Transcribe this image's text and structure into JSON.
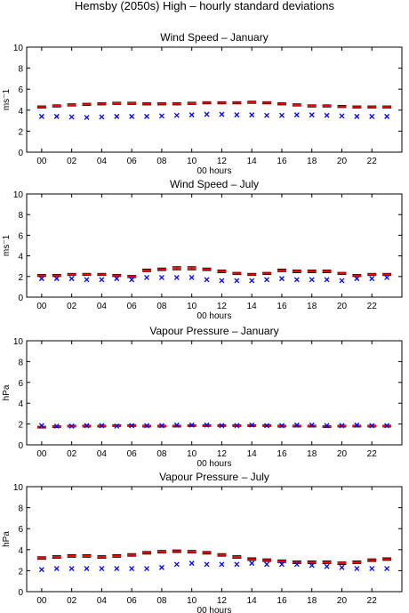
{
  "figure": {
    "title": "Hemsby (2050s) High – hourly standard deviations"
  },
  "chart_data": [
    {
      "type": "scatter",
      "title": "Wind Speed – January",
      "xlabel": "00 hours",
      "ylabel": "ms⁻1",
      "xlim": [
        -1,
        24
      ],
      "ylim": [
        0,
        10
      ],
      "x_ticks": [
        "00",
        "02",
        "04",
        "06",
        "08",
        "10",
        "12",
        "14",
        "16",
        "18",
        "20",
        "22"
      ],
      "y_ticks": [
        0,
        2,
        4,
        6,
        8,
        10
      ],
      "x": [
        0,
        1,
        2,
        3,
        4,
        5,
        6,
        7,
        8,
        9,
        10,
        11,
        12,
        13,
        14,
        15,
        16,
        17,
        18,
        19,
        20,
        21,
        22,
        23
      ],
      "series": [
        {
          "marker": "errorbar",
          "color": "#ff0000",
          "values": [
            4.3,
            4.4,
            4.5,
            4.55,
            4.6,
            4.65,
            4.65,
            4.6,
            4.6,
            4.6,
            4.65,
            4.7,
            4.7,
            4.7,
            4.75,
            4.7,
            4.6,
            4.5,
            4.4,
            4.4,
            4.35,
            4.3,
            4.3,
            4.3
          ],
          "err": [
            0.1,
            0.1,
            0.1,
            0.1,
            0.1,
            0.1,
            0.1,
            0.1,
            0.1,
            0.1,
            0.1,
            0.1,
            0.1,
            0.1,
            0.1,
            0.1,
            0.1,
            0.1,
            0.1,
            0.1,
            0.1,
            0.1,
            0.1,
            0.1
          ]
        },
        {
          "marker": "x",
          "color": "#0000ff",
          "values": [
            3.4,
            3.4,
            3.35,
            3.3,
            3.35,
            3.4,
            3.4,
            3.4,
            3.45,
            3.5,
            3.55,
            3.6,
            3.6,
            3.55,
            3.55,
            3.5,
            3.5,
            3.55,
            3.55,
            3.5,
            3.45,
            3.4,
            3.4,
            3.4
          ]
        }
      ]
    },
    {
      "type": "scatter",
      "title": "Wind Speed – July",
      "xlabel": "00 hours",
      "ylabel": "ms⁻1",
      "xlim": [
        -1,
        24
      ],
      "ylim": [
        0,
        10
      ],
      "x_ticks": [
        "00",
        "02",
        "04",
        "06",
        "08",
        "10",
        "12",
        "14",
        "16",
        "18",
        "20",
        "22"
      ],
      "y_ticks": [
        0,
        2,
        4,
        6,
        8,
        10
      ],
      "x": [
        0,
        1,
        2,
        3,
        4,
        5,
        6,
        7,
        8,
        9,
        10,
        11,
        12,
        13,
        14,
        15,
        16,
        17,
        18,
        19,
        20,
        21,
        22,
        23
      ],
      "series": [
        {
          "marker": "errorbar",
          "color": "#ff0000",
          "values": [
            2.1,
            2.1,
            2.2,
            2.2,
            2.2,
            2.1,
            2.0,
            2.6,
            2.7,
            2.8,
            2.8,
            2.7,
            2.5,
            2.3,
            2.2,
            2.3,
            2.6,
            2.5,
            2.5,
            2.5,
            2.3,
            2.1,
            2.2,
            2.2
          ],
          "err": [
            0.1,
            0.1,
            0.1,
            0.1,
            0.1,
            0.1,
            0.1,
            0.12,
            0.12,
            0.15,
            0.15,
            0.12,
            0.12,
            0.1,
            0.1,
            0.1,
            0.12,
            0.12,
            0.12,
            0.12,
            0.1,
            0.1,
            0.1,
            0.1
          ]
        },
        {
          "marker": "x",
          "color": "#0000ff",
          "values": [
            1.8,
            1.8,
            1.8,
            1.7,
            1.7,
            1.8,
            1.7,
            1.9,
            1.9,
            1.9,
            1.9,
            1.7,
            1.6,
            1.6,
            1.6,
            1.7,
            1.8,
            1.7,
            1.7,
            1.7,
            1.6,
            1.8,
            1.8,
            1.9
          ]
        }
      ]
    },
    {
      "type": "scatter",
      "title": "Vapour Pressure – January",
      "xlabel": "00 hours",
      "ylabel": "hPa",
      "xlim": [
        -1,
        24
      ],
      "ylim": [
        0,
        10
      ],
      "x_ticks": [
        "00",
        "02",
        "04",
        "06",
        "08",
        "10",
        "12",
        "14",
        "16",
        "18",
        "20",
        "22"
      ],
      "y_ticks": [
        0,
        2,
        4,
        6,
        8,
        10
      ],
      "x": [
        0,
        1,
        2,
        3,
        4,
        5,
        6,
        7,
        8,
        9,
        10,
        11,
        12,
        13,
        14,
        15,
        16,
        17,
        18,
        19,
        20,
        21,
        22,
        23
      ],
      "series": [
        {
          "marker": "errorbar",
          "color": "#ff0000",
          "values": [
            1.7,
            1.75,
            1.8,
            1.8,
            1.8,
            1.85,
            1.85,
            1.8,
            1.8,
            1.8,
            1.85,
            1.85,
            1.85,
            1.85,
            1.85,
            1.85,
            1.8,
            1.8,
            1.8,
            1.75,
            1.8,
            1.8,
            1.8,
            1.8
          ],
          "err": [
            0.08,
            0.08,
            0.08,
            0.08,
            0.08,
            0.08,
            0.08,
            0.08,
            0.08,
            0.08,
            0.08,
            0.08,
            0.08,
            0.08,
            0.08,
            0.08,
            0.08,
            0.08,
            0.08,
            0.08,
            0.08,
            0.08,
            0.08,
            0.08
          ]
        },
        {
          "marker": "x",
          "color": "#0000ff",
          "values": [
            1.85,
            1.8,
            1.8,
            1.85,
            1.85,
            1.8,
            1.85,
            1.85,
            1.85,
            1.9,
            1.9,
            1.9,
            1.85,
            1.85,
            1.9,
            1.85,
            1.85,
            1.9,
            1.9,
            1.85,
            1.85,
            1.9,
            1.85,
            1.85
          ]
        }
      ]
    },
    {
      "type": "scatter",
      "title": "Vapour Pressure – July",
      "xlabel": "00 hours",
      "ylabel": "hPa",
      "xlim": [
        -1,
        24
      ],
      "ylim": [
        0,
        10
      ],
      "x_ticks": [
        "00",
        "02",
        "04",
        "06",
        "08",
        "10",
        "12",
        "14",
        "16",
        "18",
        "20",
        "22"
      ],
      "y_ticks": [
        0,
        2,
        4,
        6,
        8,
        10
      ],
      "x": [
        0,
        1,
        2,
        3,
        4,
        5,
        6,
        7,
        8,
        9,
        10,
        11,
        12,
        13,
        14,
        15,
        16,
        17,
        18,
        19,
        20,
        21,
        22,
        23
      ],
      "series": [
        {
          "marker": "errorbar",
          "color": "#ff0000",
          "values": [
            3.2,
            3.3,
            3.4,
            3.4,
            3.3,
            3.4,
            3.5,
            3.7,
            3.8,
            3.85,
            3.8,
            3.7,
            3.5,
            3.3,
            3.1,
            3.0,
            2.9,
            2.8,
            2.8,
            2.8,
            2.7,
            2.8,
            3.0,
            3.1
          ],
          "err": [
            0.12,
            0.12,
            0.12,
            0.12,
            0.12,
            0.12,
            0.12,
            0.12,
            0.12,
            0.12,
            0.12,
            0.12,
            0.12,
            0.12,
            0.12,
            0.12,
            0.12,
            0.12,
            0.12,
            0.12,
            0.12,
            0.12,
            0.12,
            0.12
          ]
        },
        {
          "marker": "x",
          "color": "#0000ff",
          "values": [
            2.1,
            2.2,
            2.2,
            2.2,
            2.2,
            2.2,
            2.2,
            2.2,
            2.3,
            2.6,
            2.7,
            2.6,
            2.6,
            2.6,
            2.7,
            2.6,
            2.6,
            2.6,
            2.5,
            2.4,
            2.3,
            2.2,
            2.2,
            2.2
          ]
        }
      ]
    }
  ]
}
